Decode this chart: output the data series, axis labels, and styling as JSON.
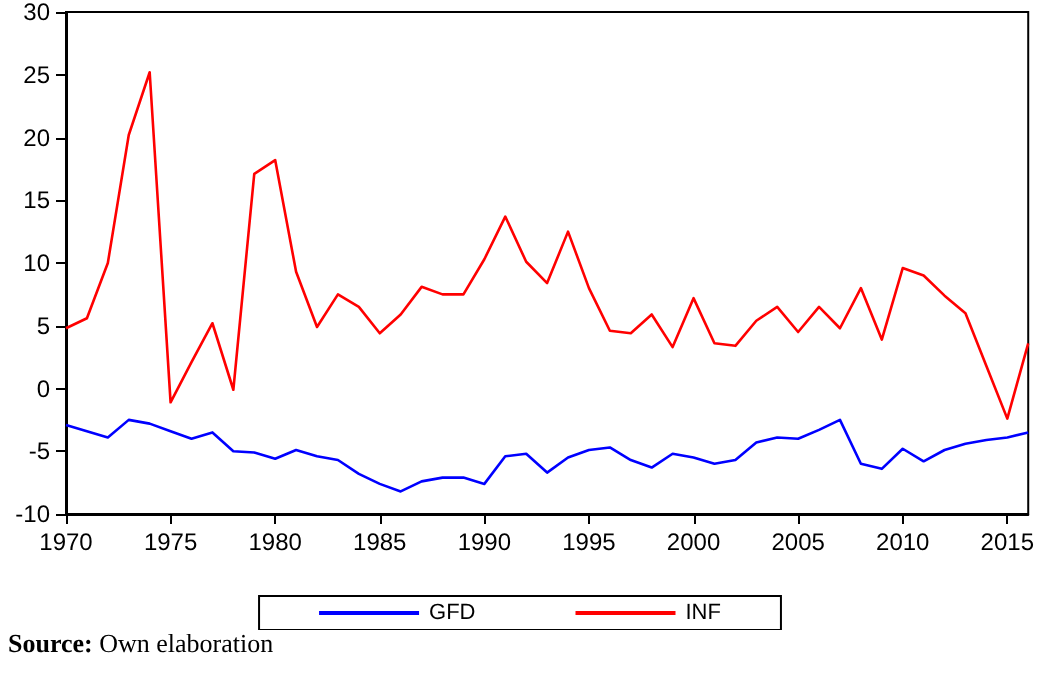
{
  "chart_data": {
    "type": "line",
    "x": [
      1970,
      1971,
      1972,
      1973,
      1974,
      1975,
      1976,
      1977,
      1978,
      1979,
      1980,
      1981,
      1982,
      1983,
      1984,
      1985,
      1986,
      1987,
      1988,
      1989,
      1990,
      1991,
      1992,
      1993,
      1994,
      1995,
      1996,
      1997,
      1998,
      1999,
      2000,
      2001,
      2002,
      2003,
      2004,
      2005,
      2006,
      2007,
      2008,
      2009,
      2010,
      2011,
      2012,
      2013,
      2014,
      2015,
      2016
    ],
    "series": [
      {
        "name": "GFD",
        "color": "#0000ff",
        "values": [
          -2.9,
          -3.4,
          -3.9,
          -2.5,
          -2.8,
          -3.4,
          -4.0,
          -3.5,
          -5.0,
          -5.1,
          -5.6,
          -4.9,
          -5.4,
          -5.7,
          -6.8,
          -7.6,
          -8.2,
          -7.4,
          -7.1,
          -7.1,
          -7.6,
          -5.4,
          -5.2,
          -6.7,
          -5.5,
          -4.9,
          -4.7,
          -5.7,
          -6.3,
          -5.2,
          -5.5,
          -6.0,
          -5.7,
          -4.3,
          -3.9,
          -4.0,
          -3.3,
          -2.5,
          -6.0,
          -6.4,
          -4.8,
          -5.8,
          -4.9,
          -4.4,
          -4.1,
          -3.9,
          -3.5
        ]
      },
      {
        "name": "INF",
        "color": "#ff0000",
        "values": [
          4.8,
          5.6,
          10.0,
          20.2,
          25.2,
          -1.1,
          2.1,
          5.2,
          -0.1,
          17.1,
          18.2,
          9.3,
          4.9,
          7.5,
          6.5,
          4.4,
          5.9,
          8.1,
          7.5,
          7.5,
          10.3,
          13.7,
          10.1,
          8.4,
          12.5,
          8.0,
          4.6,
          4.4,
          5.9,
          3.3,
          7.2,
          3.6,
          3.4,
          5.4,
          6.5,
          4.5,
          6.5,
          4.8,
          8.0,
          3.9,
          9.6,
          9.0,
          7.4,
          6.0,
          1.8,
          -2.4,
          3.6
        ]
      }
    ],
    "xlim": [
      1970,
      2016
    ],
    "xticks": [
      1970,
      1975,
      1980,
      1985,
      1990,
      1995,
      2000,
      2005,
      2010,
      2015
    ],
    "ylim": [
      -10,
      30
    ],
    "yticks": [
      -10,
      -5,
      0,
      5,
      10,
      15,
      20,
      25,
      30
    ],
    "grid": false,
    "legend": "bottom",
    "marker": "none",
    "line_style": "solid",
    "annotations": [
      "Source: Own elaboration"
    ]
  }
}
